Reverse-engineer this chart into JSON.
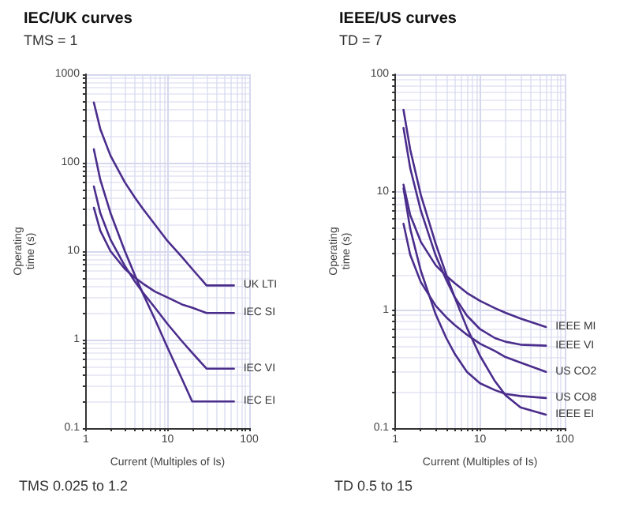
{
  "chart_data": [
    {
      "type": "line",
      "title": "IEC/UK curves",
      "subtitle": "TMS = 1",
      "xlabel": "Current (Multiples of Is)",
      "ylabel": "Operating\ntime (s)",
      "log": "xy",
      "grid": true,
      "legend": false,
      "marker": "none",
      "line_style": "solid",
      "xlim": [
        1,
        100
      ],
      "xticks": [
        1,
        10,
        100
      ],
      "ylim": [
        0.1,
        1000
      ],
      "yticks": [
        0.1,
        1,
        10,
        100,
        1000
      ],
      "annotations": [
        "TMS 0.025 to 1.2"
      ],
      "series": [
        {
          "name": "UK LTI",
          "color": "#4b2d8c",
          "x": [
            1.25,
            1.5,
            2,
            3,
            4,
            5,
            7,
            10,
            15,
            20,
            30,
            65
          ],
          "values": [
            480,
            240,
            120,
            60,
            40,
            30,
            20,
            13,
            8.6,
            6.3,
            4.1,
            4.1
          ]
        },
        {
          "name": "IEC SI",
          "color": "#4b2d8c",
          "x": [
            1.25,
            1.5,
            2,
            3,
            4,
            5,
            7,
            10,
            15,
            20,
            30,
            65
          ],
          "values": [
            31,
            17,
            10,
            6.3,
            5,
            4.3,
            3.5,
            3,
            2.5,
            2.3,
            2,
            2
          ]
        },
        {
          "name": "IEC VI",
          "color": "#4b2d8c",
          "x": [
            1.25,
            1.5,
            2,
            3,
            4,
            5,
            7,
            10,
            15,
            20,
            30,
            65
          ],
          "values": [
            54,
            27,
            13.5,
            6.8,
            4.5,
            3.4,
            2.3,
            1.5,
            0.96,
            0.71,
            0.47,
            0.47
          ]
        },
        {
          "name": "IEC EI",
          "color": "#4b2d8c",
          "x": [
            1.25,
            1.5,
            2,
            3,
            4,
            5,
            7,
            10,
            15,
            20,
            65
          ],
          "values": [
            142,
            64,
            27,
            10,
            5.3,
            3.3,
            1.7,
            0.81,
            0.36,
            0.2,
            0.2
          ]
        }
      ]
    },
    {
      "type": "line",
      "title": "IEEE/US curves",
      "subtitle": "TD = 7",
      "xlabel": "Current (Multiples of Is)",
      "ylabel": "Operating\ntime (s)",
      "log": "xy",
      "grid": true,
      "legend": false,
      "marker": "none",
      "line_style": "solid",
      "xlim": [
        1,
        100
      ],
      "xticks": [
        1,
        10,
        100
      ],
      "ylim": [
        0.1,
        100
      ],
      "yticks": [
        0.1,
        1,
        10,
        100
      ],
      "annotations": [
        "TD 0.5 to 15"
      ],
      "series": [
        {
          "name": "IEEE MI",
          "color": "#4b2d8c",
          "x": [
            1.25,
            1.5,
            2,
            3,
            4,
            5,
            7,
            10,
            15,
            20,
            30,
            60
          ],
          "values": [
            11.6,
            6.4,
            3.8,
            2.4,
            1.95,
            1.7,
            1.4,
            1.2,
            1.04,
            0.95,
            0.85,
            0.72
          ]
        },
        {
          "name": "IEEE VI",
          "color": "#4b2d8c",
          "x": [
            1.25,
            1.5,
            2,
            3,
            4,
            5,
            7,
            10,
            15,
            20,
            30,
            60
          ],
          "values": [
            35,
            16,
            7,
            2.9,
            1.8,
            1.3,
            0.9,
            0.69,
            0.58,
            0.54,
            0.51,
            0.5
          ]
        },
        {
          "name": "US CO2",
          "color": "#4b2d8c",
          "x": [
            1.25,
            1.5,
            2,
            3,
            4,
            5,
            7,
            10,
            15,
            20,
            30,
            60
          ],
          "values": [
            5.4,
            2.95,
            1.73,
            1.09,
            0.87,
            0.75,
            0.62,
            0.52,
            0.45,
            0.4,
            0.36,
            0.3
          ]
        },
        {
          "name": "US CO8",
          "color": "#4b2d8c",
          "x": [
            1.25,
            1.5,
            2,
            3,
            4,
            5,
            7,
            10,
            15,
            20,
            30,
            60
          ],
          "values": [
            10.8,
            4.9,
            2.16,
            0.92,
            0.58,
            0.43,
            0.3,
            0.24,
            0.21,
            0.195,
            0.187,
            0.18
          ]
        },
        {
          "name": "IEEE EI",
          "color": "#4b2d8c",
          "x": [
            1.25,
            1.5,
            2,
            3,
            4,
            5,
            7,
            10,
            15,
            20,
            30,
            60
          ],
          "values": [
            50,
            23,
            9.5,
            3.65,
            2,
            1.3,
            0.71,
            0.41,
            0.25,
            0.19,
            0.15,
            0.13
          ]
        }
      ]
    }
  ]
}
